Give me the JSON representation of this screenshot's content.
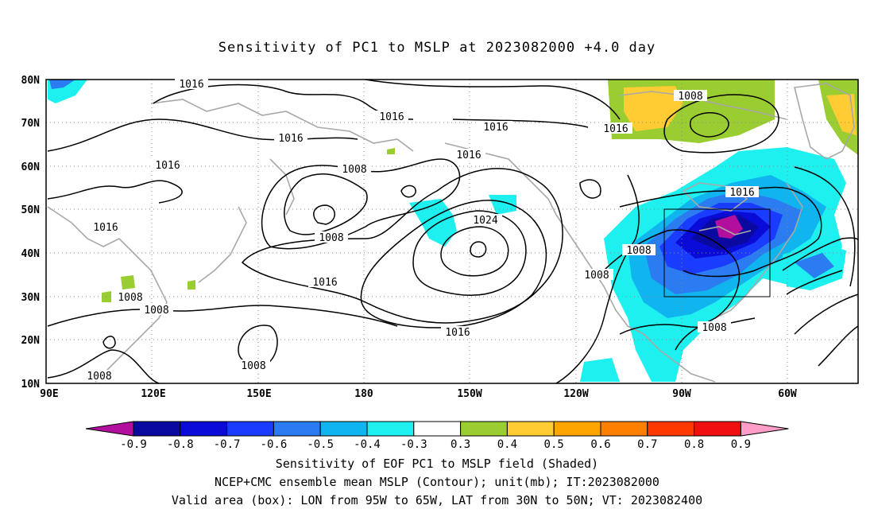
{
  "title": "Sensitivity of PC1 to MSLP at 2023082000 +4.0 day",
  "lon_labels": [
    "90E",
    "120E",
    "150E",
    "180",
    "150W",
    "120W",
    "90W",
    "60W"
  ],
  "lat_labels": [
    "10N",
    "20N",
    "30N",
    "40N",
    "50N",
    "60N",
    "70N",
    "80N"
  ],
  "contour_labels": [
    {
      "text": "1016"
    },
    {
      "text": "1016"
    },
    {
      "text": "1016"
    },
    {
      "text": "1016"
    },
    {
      "text": "1016"
    },
    {
      "text": "1016"
    },
    {
      "text": "1008"
    },
    {
      "text": "1016"
    },
    {
      "text": "1008"
    },
    {
      "text": "1016"
    },
    {
      "text": "1008"
    },
    {
      "text": "1024"
    },
    {
      "text": "1016"
    },
    {
      "text": "1008"
    },
    {
      "text": "1008"
    },
    {
      "text": "1008"
    },
    {
      "text": "1016"
    },
    {
      "text": "1008"
    },
    {
      "text": "1008"
    },
    {
      "text": "1016"
    },
    {
      "text": "1008"
    }
  ],
  "colorbar": {
    "ticks": [
      "-0.9",
      "-0.8",
      "-0.7",
      "-0.6",
      "-0.5",
      "-0.4",
      "-0.3",
      "0.3",
      "0.4",
      "0.5",
      "0.6",
      "0.7",
      "0.8",
      "0.9"
    ],
    "colors": [
      "#b20f9e",
      "#0a0aa0",
      "#0b0bd8",
      "#1a3cff",
      "#2a7cf0",
      "#10b4ee",
      "#1ef0f0",
      "#ffffff",
      "#9acd32",
      "#ffcc33",
      "#ffa500",
      "#ff7f00",
      "#ff3a00",
      "#f01010",
      "#ff9cc8"
    ]
  },
  "caption": {
    "line1": "Sensitivity of EOF PC1 to MSLP field (Shaded)",
    "line2": "NCEP+CMC ensemble mean MSLP (Contour); unit(mb); IT:2023082000",
    "line3": "Valid area (box): LON from 95W to 65W, LAT from 30N to 50N; VT: 2023082400"
  },
  "valid_box": {
    "lon_min": -95,
    "lon_max": -65,
    "lat_min": 30,
    "lat_max": 50
  }
}
